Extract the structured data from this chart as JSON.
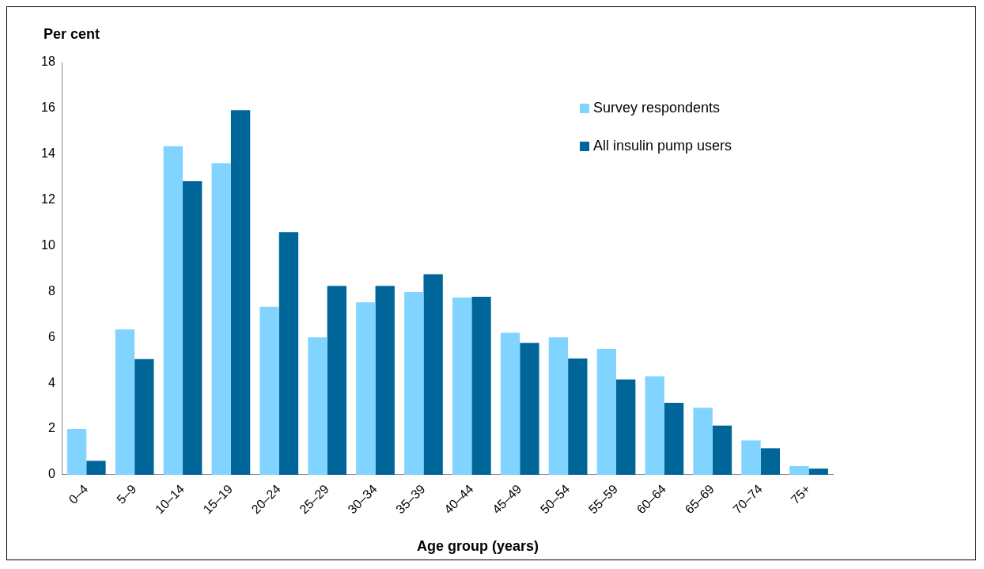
{
  "chart_data": {
    "type": "bar",
    "ylabel": "Per cent",
    "xlabel": "Age group (years)",
    "categories": [
      "0–4",
      "5–9",
      "10–14",
      "15–19",
      "20–24",
      "25–29",
      "30–34",
      "35–39",
      "40–44",
      "45–49",
      "50–54",
      "55–59",
      "60–64",
      "65–69",
      "70–74",
      "75+"
    ],
    "series": [
      {
        "name": "Survey respondents",
        "color": "#80d4ff",
        "values": [
          2.0,
          6.35,
          14.35,
          13.6,
          7.33,
          6.0,
          7.53,
          7.98,
          7.74,
          6.2,
          6.0,
          5.49,
          4.3,
          2.93,
          1.5,
          0.38
        ]
      },
      {
        "name": "All insulin pump users",
        "color": "#006699",
        "values": [
          0.61,
          5.05,
          12.82,
          15.92,
          10.6,
          8.25,
          8.25,
          8.76,
          7.77,
          5.76,
          5.08,
          4.16,
          3.14,
          2.15,
          1.16,
          0.27
        ]
      }
    ],
    "ylim": [
      0,
      18
    ],
    "yticks": [
      0,
      2,
      4,
      6,
      8,
      10,
      12,
      14,
      16,
      18
    ],
    "grid": false,
    "legend": "top right"
  }
}
